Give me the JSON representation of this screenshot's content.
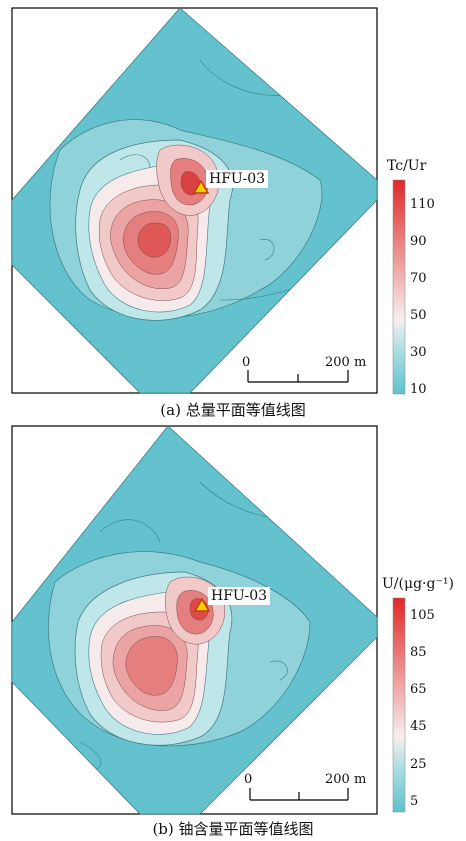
{
  "panels": [
    {
      "id": "a",
      "caption": "(a) 总量平面等值线图",
      "legend_title": "Tc/Ur",
      "legend_ticks": [
        "110",
        "90",
        "70",
        "50",
        "30",
        "10"
      ],
      "station_label": "HFU-03",
      "scale_labels": {
        "zero": "0",
        "end": "200 m"
      }
    },
    {
      "id": "b",
      "caption": "(b) 铀含量平面等值线图",
      "legend_title": "U/(μg·g⁻¹)",
      "legend_ticks": [
        "105",
        "85",
        "65",
        "45",
        "25",
        "5"
      ],
      "station_label": "HFU-03",
      "scale_labels": {
        "zero": "0",
        "end": "200 m"
      }
    }
  ],
  "colors": {
    "background": "#5fc1cc",
    "low": "#8fd3da",
    "mid": "#f4e4e4",
    "high": "#e23a3a",
    "frame": "#000000",
    "marker": "#f5d000"
  }
}
